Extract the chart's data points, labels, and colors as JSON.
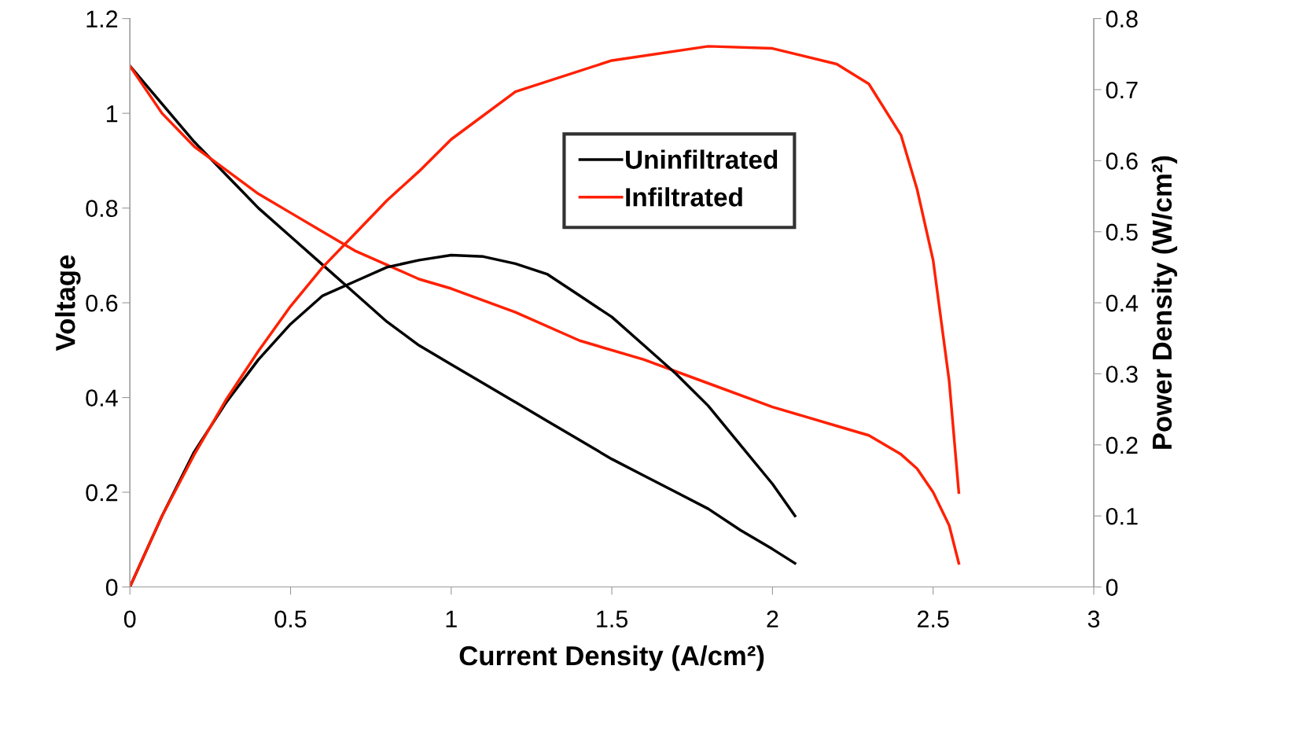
{
  "chart_data": {
    "type": "line",
    "xlabel": "Current Density (A/cm²)",
    "ylabel": "Voltage",
    "y2label": "Power Density (W/cm²)",
    "xlim": [
      0,
      3
    ],
    "xticks": [
      0,
      0.5,
      1,
      1.5,
      2,
      2.5,
      3
    ],
    "ylim": [
      0,
      1.2
    ],
    "yticks": [
      0,
      0.2,
      0.4,
      0.6,
      0.8,
      1,
      1.2
    ],
    "y2lim": [
      0,
      0.8
    ],
    "y2ticks": [
      0,
      0.1,
      0.2,
      0.3,
      0.4,
      0.5,
      0.6,
      0.7,
      0.8
    ],
    "grid": false,
    "legend": "top",
    "marker": "none",
    "line_style": "solid",
    "series": [
      {
        "name": "Uninfiltrated",
        "color": "#000000",
        "x": [
          0,
          0.1,
          0.2,
          0.3,
          0.4,
          0.5,
          0.6,
          0.7,
          0.8,
          0.9,
          1.0,
          1.1,
          1.2,
          1.3,
          1.4,
          1.5,
          1.6,
          1.7,
          1.8,
          1.9,
          2.0,
          2.07
        ],
        "values": [
          1.1,
          1.02,
          0.94,
          0.87,
          0.8,
          0.74,
          0.68,
          0.62,
          0.56,
          0.51,
          0.47,
          0.43,
          0.39,
          0.35,
          0.31,
          0.27,
          0.235,
          0.2,
          0.165,
          0.12,
          0.08,
          0.05
        ]
      },
      {
        "name": "Infiltrated",
        "color": "#ff2000",
        "x": [
          0,
          0.1,
          0.2,
          0.3,
          0.4,
          0.5,
          0.6,
          0.7,
          0.8,
          0.9,
          1.0,
          1.2,
          1.4,
          1.6,
          1.8,
          2.0,
          2.2,
          2.3,
          2.4,
          2.45,
          2.5,
          2.55,
          2.58
        ],
        "values": [
          1.1,
          1.0,
          0.93,
          0.88,
          0.83,
          0.79,
          0.75,
          0.71,
          0.68,
          0.65,
          0.63,
          0.58,
          0.52,
          0.48,
          0.43,
          0.38,
          0.34,
          0.32,
          0.28,
          0.25,
          0.2,
          0.13,
          0.05
        ]
      },
      {
        "color": "#000000",
        "axis": "y2",
        "x": [
          0,
          0.1,
          0.2,
          0.3,
          0.4,
          0.5,
          0.6,
          0.7,
          0.8,
          0.9,
          1.0,
          1.1,
          1.2,
          1.3,
          1.4,
          1.5,
          1.6,
          1.7,
          1.8,
          1.9,
          2.0,
          2.07
        ],
        "values": [
          0,
          0.1,
          0.19,
          0.26,
          0.32,
          0.37,
          0.41,
          0.43,
          0.45,
          0.46,
          0.467,
          0.465,
          0.455,
          0.44,
          0.41,
          0.38,
          0.34,
          0.3,
          0.255,
          0.2,
          0.145,
          0.1
        ]
      },
      {
        "color": "#ff2000",
        "axis": "y2",
        "x": [
          0,
          0.1,
          0.2,
          0.3,
          0.4,
          0.5,
          0.6,
          0.7,
          0.8,
          0.9,
          1.0,
          1.2,
          1.5,
          1.8,
          2.0,
          2.2,
          2.3,
          2.4,
          2.45,
          2.5,
          2.55,
          2.58
        ],
        "values": [
          0,
          0.1,
          0.186,
          0.264,
          0.332,
          0.395,
          0.45,
          0.497,
          0.544,
          0.585,
          0.63,
          0.697,
          0.741,
          0.761,
          0.758,
          0.736,
          0.708,
          0.636,
          0.56,
          0.46,
          0.29,
          0.133
        ]
      }
    ]
  }
}
